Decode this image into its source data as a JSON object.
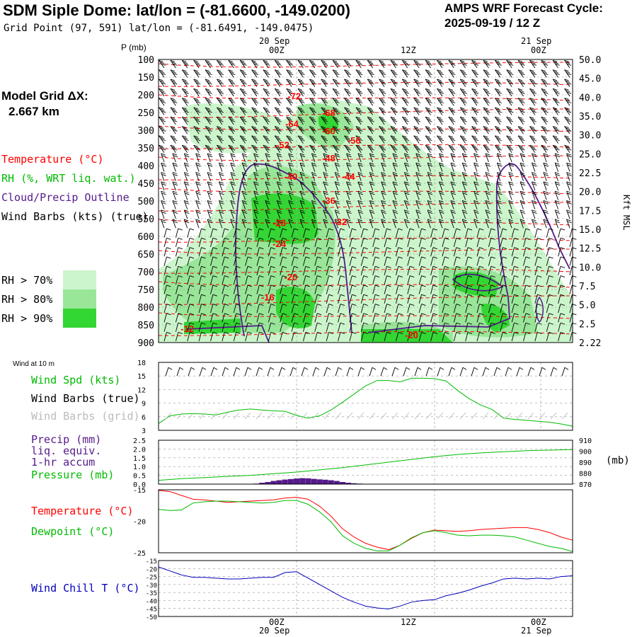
{
  "header": {
    "title": "SDM Siple Dome:  lat/lon = (-81.6600, -149.0200)",
    "grid_point": "Grid Point (97, 591) lat/lon = (-81.6491, -149.0475)",
    "cycle_label": "AMPS WRF Forecast Cycle:",
    "cycle_value": "2025-09-19 / 12  Z"
  },
  "left_panel": {
    "model_grid_label": "Model Grid ΔX:",
    "model_grid_value": "2.667 km",
    "legend_temperature": "Temperature (°C)",
    "legend_rh": "RH (%, WRT liq. wat.)",
    "legend_cloud": "Cloud/Precip Outline",
    "legend_wind": "Wind Barbs (kts) (true)",
    "rh_levels": [
      "RH > 70%",
      "RH > 80%",
      "RH > 90%"
    ],
    "rh_colors": [
      "#ccf5cc",
      "#99e699",
      "#33d633"
    ]
  },
  "colors": {
    "temp": "#ff0000",
    "rh1": "#ccf5cc",
    "rh2": "#99e699",
    "rh3": "#33d633",
    "cloud": "#551a8b",
    "wind_spd": "#00bb00",
    "precip": "#551a8b",
    "chill": "#0000bb",
    "grid_barb": "#bbbbbb"
  },
  "chart_data": [
    {
      "type": "heatmap",
      "name": "time-height cross section",
      "title": "P (mb)",
      "ylabel": "P (mb)",
      "y_ticks": [
        "100",
        "150",
        "200",
        "250",
        "300",
        "350",
        "400",
        "450",
        "500",
        "550",
        "600",
        "650",
        "700",
        "750",
        "800",
        "850",
        "900"
      ],
      "right_ticks": [
        "50.0",
        "45.0",
        "40.0",
        "35.0",
        "30.0",
        "25.0",
        "22.5",
        "20.0",
        "17.5",
        "15.0",
        "12.5",
        "10.0",
        "7.5",
        "5.0",
        "2.5",
        "2.22"
      ],
      "right_label": "Kft MSL",
      "top_date_1": "20  Sep",
      "top_date_2": "21  Sep",
      "top_ticks": [
        "00Z",
        "12Z",
        "00Z"
      ],
      "temperature_labels": [
        {
          "label": "-72",
          "t": 11.8,
          "p": 205
        },
        {
          "label": "-68",
          "t": 14.8,
          "p": 252
        },
        {
          "label": "-64",
          "t": 11.6,
          "p": 283
        },
        {
          "label": "-60",
          "t": 14.8,
          "p": 303
        },
        {
          "label": "-56",
          "t": 17.0,
          "p": 330
        },
        {
          "label": "-52",
          "t": 10.8,
          "p": 343
        },
        {
          "label": "-48",
          "t": 14.8,
          "p": 380
        },
        {
          "label": "-44",
          "t": 16.5,
          "p": 432
        },
        {
          "label": "-40",
          "t": 11.5,
          "p": 432
        },
        {
          "label": "-36",
          "t": 14.8,
          "p": 500
        },
        {
          "label": "-32",
          "t": 15.8,
          "p": 560
        },
        {
          "label": "-28",
          "t": 10.5,
          "p": 563
        },
        {
          "label": "-24",
          "t": 10.5,
          "p": 622
        },
        {
          "label": "-20",
          "t": 11.5,
          "p": 716
        },
        {
          "label": "-16",
          "t": 9.5,
          "p": 773
        },
        {
          "label": "-20",
          "t": 22.0,
          "p": 880
        },
        {
          "label": "-12",
          "t": 2.5,
          "p": 862
        }
      ]
    },
    {
      "type": "line",
      "name": "Wind at 10 m",
      "panel_title": "Wind at 10 m",
      "labels": [
        "Wind Spd (kts)",
        "Wind Barbs (true)",
        "Wind Barbs (grid)"
      ],
      "y_ticks": [
        "18",
        "15",
        "12",
        "9",
        "6",
        "3"
      ],
      "ylim": [
        3,
        18
      ],
      "x": [
        0,
        1,
        2,
        3,
        4,
        5,
        6,
        7,
        8,
        9,
        10,
        11,
        12,
        13,
        14,
        15,
        16,
        17,
        18,
        19,
        20,
        21,
        22,
        23,
        24,
        25,
        26,
        27,
        28,
        29,
        30,
        31,
        32,
        33,
        34,
        35,
        36
      ],
      "values": [
        4.5,
        6.2,
        6.6,
        6.7,
        6.6,
        6.4,
        7.0,
        7.5,
        7.7,
        7.5,
        7.3,
        7.2,
        6.3,
        5.7,
        6.2,
        7.5,
        9.2,
        11.0,
        12.8,
        14.0,
        14.0,
        13.7,
        14.5,
        14.5,
        14.4,
        13.9,
        11.8,
        10.0,
        8.6,
        7.6,
        5.7,
        5.4,
        5.2,
        5.0,
        4.8,
        4.4,
        3.9
      ]
    },
    {
      "type": "bar",
      "name": "Precip and Pressure",
      "labels": [
        "Precip (mm)",
        "liq. equiv.",
        "1-hr accum",
        "Pressure (mb)"
      ],
      "left_ticks": [
        "2.5",
        "2.0",
        "1.5",
        "1.0",
        "0.5",
        "0.0"
      ],
      "right_ticks": [
        "910",
        "900",
        "890",
        "880",
        "870"
      ],
      "right_unit": "(mb)",
      "ylim": [
        0,
        2.5
      ],
      "pressure_ylim": [
        870,
        910
      ],
      "precip_x": [
        8.5,
        9,
        9.5,
        10,
        10.5,
        11,
        11.5,
        12,
        12.5,
        13,
        13.5,
        14,
        14.5,
        15,
        15.5,
        16,
        16.5,
        17,
        17.5,
        18,
        18.5,
        19,
        33.5,
        34,
        34.5,
        35,
        35.5,
        36
      ],
      "precip_values": [
        0.03,
        0.08,
        0.12,
        0.18,
        0.22,
        0.26,
        0.29,
        0.32,
        0.34,
        0.33,
        0.3,
        0.27,
        0.25,
        0.22,
        0.18,
        0.12,
        0.08,
        0.05,
        0.03,
        0.02,
        0.01,
        0.01,
        0.02,
        0.02,
        0.02,
        0.02,
        0.02,
        0.02
      ],
      "pressure_x": [
        0,
        2,
        4,
        6,
        8,
        10,
        12,
        14,
        16,
        18,
        20,
        22,
        24,
        26,
        28,
        30,
        32,
        34,
        36
      ],
      "pressure_values": [
        873.5,
        875,
        876,
        877,
        878,
        879.5,
        881,
        883,
        885,
        887.5,
        890,
        892.5,
        895,
        897,
        898.5,
        899.5,
        900.5,
        901,
        901.5
      ]
    },
    {
      "type": "line",
      "name": "Temperature and Dewpoint",
      "labels": [
        "Temperature (°C)",
        "Dewpoint (°C)"
      ],
      "y_ticks": [
        "-15",
        "-20",
        "-25"
      ],
      "ylim": [
        -25,
        -15
      ],
      "x": [
        0,
        1,
        2,
        3,
        4,
        5,
        6,
        7,
        8,
        9,
        10,
        11,
        12,
        13,
        14,
        15,
        16,
        17,
        18,
        19,
        20,
        21,
        22,
        23,
        24,
        25,
        26,
        27,
        28,
        29,
        30,
        31,
        32,
        33,
        34,
        35,
        36
      ],
      "series": [
        {
          "name": "Temperature",
          "values": [
            -15.1,
            -15.3,
            -15.9,
            -16.5,
            -16.6,
            -16.8,
            -17.0,
            -16.9,
            -16.8,
            -16.7,
            -16.6,
            -16.3,
            -16.2,
            -16.5,
            -17.6,
            -19.2,
            -21.2,
            -22.5,
            -23.5,
            -24.1,
            -24.5,
            -23.8,
            -22.7,
            -21.8,
            -21.4,
            -21.5,
            -21.6,
            -21.5,
            -21.3,
            -21.2,
            -21.1,
            -21.0,
            -21.0,
            -21.3,
            -21.8,
            -22.5,
            -23.0
          ]
        },
        {
          "name": "Dewpoint",
          "values": [
            -18.1,
            -18.3,
            -18.2,
            -17.1,
            -16.9,
            -16.8,
            -16.8,
            -16.9,
            -17.0,
            -17.1,
            -17.0,
            -16.7,
            -16.7,
            -17.3,
            -18.5,
            -20.1,
            -22.3,
            -23.5,
            -24.3,
            -24.7,
            -24.7,
            -23.8,
            -22.6,
            -21.8,
            -21.5,
            -21.8,
            -22.2,
            -22.3,
            -22.2,
            -22.2,
            -22.3,
            -22.5,
            -23.0,
            -23.5,
            -24.0,
            -24.3,
            -24.8
          ]
        }
      ]
    },
    {
      "type": "line",
      "name": "Wind Chill",
      "labels": [
        "Wind Chill T (°C)"
      ],
      "y_ticks": [
        "-15",
        "-20",
        "-25",
        "-30",
        "-35",
        "-40",
        "-45",
        "-50"
      ],
      "ylim": [
        -50,
        -15
      ],
      "x": [
        0,
        1,
        2,
        3,
        4,
        5,
        6,
        7,
        8,
        9,
        10,
        11,
        12,
        13,
        14,
        15,
        16,
        17,
        18,
        19,
        20,
        21,
        22,
        23,
        24,
        25,
        26,
        27,
        28,
        29,
        30,
        31,
        32,
        33,
        34,
        35,
        36
      ],
      "values": [
        -19,
        -21.5,
        -24,
        -25.5,
        -25.5,
        -26,
        -26.5,
        -26.5,
        -26,
        -25.5,
        -25.5,
        -22.5,
        -22,
        -26,
        -30,
        -34,
        -38,
        -41,
        -43.5,
        -44.7,
        -45.3,
        -43.5,
        -41,
        -40,
        -39.5,
        -37,
        -35.5,
        -33.5,
        -31,
        -29,
        -26.5,
        -26,
        -26.5,
        -26,
        -26.5,
        -25,
        -24.5
      ]
    }
  ],
  "bottom_axis": {
    "ticks": [
      "00Z",
      "12Z",
      "00Z"
    ],
    "dates": [
      "20  Sep",
      "21  Sep"
    ]
  }
}
